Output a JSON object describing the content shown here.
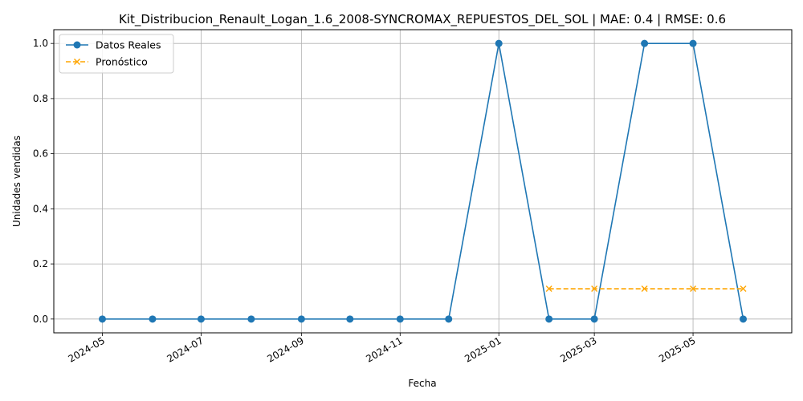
{
  "chart_data": {
    "type": "line",
    "title": "Kit_Distribucion_Renault_Logan_1.6_2008-SYNCROMAX_REPUESTOS_DEL_SOL | MAE: 0.4 | RMSE: 0.6",
    "xlabel": "Fecha",
    "ylabel": "Unidades vendidas",
    "xlim": [
      "2024-04-01",
      "2025-07-01"
    ],
    "ylim": [
      -0.05,
      1.05
    ],
    "grid": true,
    "legend_position": "top-left",
    "x_ticks": [
      "2024-05",
      "2024-07",
      "2024-09",
      "2024-11",
      "2025-01",
      "2025-03",
      "2025-05"
    ],
    "y_ticks": [
      "0.0",
      "0.2",
      "0.4",
      "0.6",
      "0.8",
      "1.0"
    ],
    "y_tick_values": [
      0,
      0.2,
      0.4,
      0.6,
      0.8,
      1.0
    ],
    "series": [
      {
        "name": "Datos Reales",
        "color": "#1f77b4",
        "marker": "circle",
        "linestyle": "solid",
        "x": [
          "2024-05-01",
          "2024-06-01",
          "2024-07-01",
          "2024-08-01",
          "2024-09-01",
          "2024-10-01",
          "2024-11-01",
          "2024-12-01",
          "2025-01-01",
          "2025-02-01",
          "2025-03-01",
          "2025-04-01",
          "2025-05-01",
          "2025-06-01"
        ],
        "values": [
          0,
          0,
          0,
          0,
          0,
          0,
          0,
          0,
          1,
          0,
          0,
          1,
          1,
          0
        ]
      },
      {
        "name": "Pronóstico",
        "color": "#ffa500",
        "marker": "x",
        "linestyle": "dashed",
        "x": [
          "2025-02-01",
          "2025-03-01",
          "2025-04-01",
          "2025-05-01",
          "2025-06-01"
        ],
        "values": [
          0.11,
          0.11,
          0.11,
          0.11,
          0.11
        ]
      }
    ]
  }
}
